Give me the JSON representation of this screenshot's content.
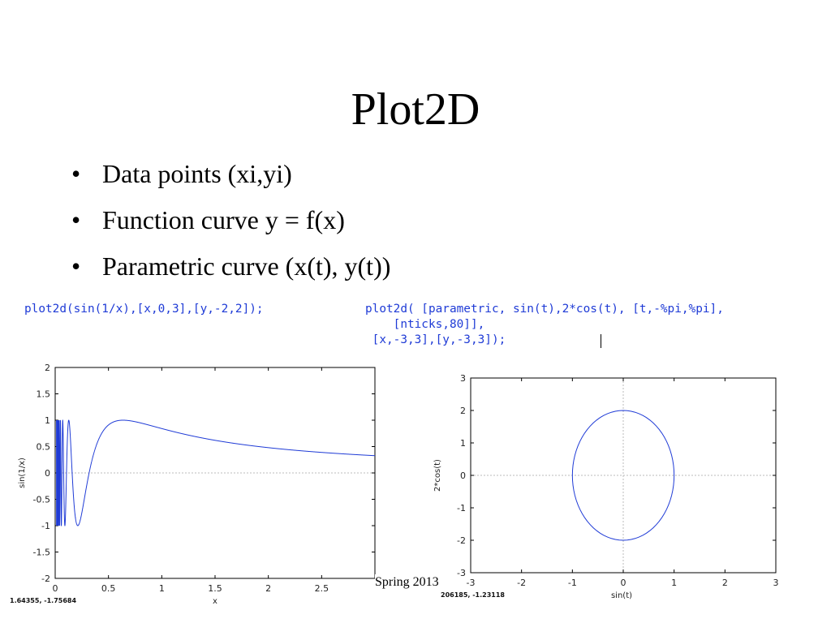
{
  "slide": {
    "title": "Plot2D",
    "bullets": [
      "Data points (xi,yi)",
      "Function curve y = f(x)",
      "Parametric curve (x(t), y(t))"
    ],
    "bullet_symbol": "•",
    "footer": "Spring 2013"
  },
  "code": {
    "left": "plot2d(sin(1/x),[x,0,3],[y,-2,2]);",
    "right": "plot2d( [parametric, sin(t),2*cos(t), [t,-%pi,%pi],\n    [nticks,80]],\n [x,-3,3],[y,-3,3]);"
  },
  "colors": {
    "code": "#1f3bd6",
    "curve": "#1f3bd6",
    "zero_line": "#bbbbbb"
  },
  "chart_data": [
    {
      "type": "line",
      "function": "sin(1/x)",
      "xlabel": "x",
      "ylabel": "sin(1/x)",
      "xlim": [
        0,
        3
      ],
      "ylim": [
        -2,
        2
      ],
      "xticks": [
        0,
        0.5,
        1,
        1.5,
        2,
        2.5
      ],
      "xtick_labels": [
        "0",
        "0.5",
        "1",
        "1.5",
        "2",
        "2.5"
      ],
      "yticks": [
        -2,
        -1.5,
        -1,
        -0.5,
        0,
        0.5,
        1,
        1.5,
        2
      ],
      "ytick_labels": [
        "-2",
        "-1.5",
        "-1",
        "-0.5",
        "0",
        "0.5",
        "1",
        "1.5",
        "2"
      ],
      "zero_line": true,
      "status_text": "1.64355, -1.75684"
    },
    {
      "type": "line",
      "parametric": {
        "x": "sin(t)",
        "y": "2*cos(t)",
        "t_range": [
          -3.14159,
          3.14159
        ],
        "nticks": 80
      },
      "xlabel": "sin(t)",
      "ylabel": "2*cos(t)",
      "xlim": [
        -3,
        3
      ],
      "ylim": [
        -3,
        3
      ],
      "xticks": [
        -3,
        -2,
        -1,
        0,
        1,
        2,
        3
      ],
      "xtick_labels": [
        "-3",
        "-2",
        "-1",
        "0",
        "1",
        "2",
        "3"
      ],
      "yticks": [
        -3,
        -2,
        -1,
        0,
        1,
        2,
        3
      ],
      "ytick_labels": [
        "-3",
        "-2",
        "-1",
        "0",
        "1",
        "2",
        "3"
      ],
      "zero_line": true,
      "status_text": "206185, -1.23118"
    }
  ]
}
